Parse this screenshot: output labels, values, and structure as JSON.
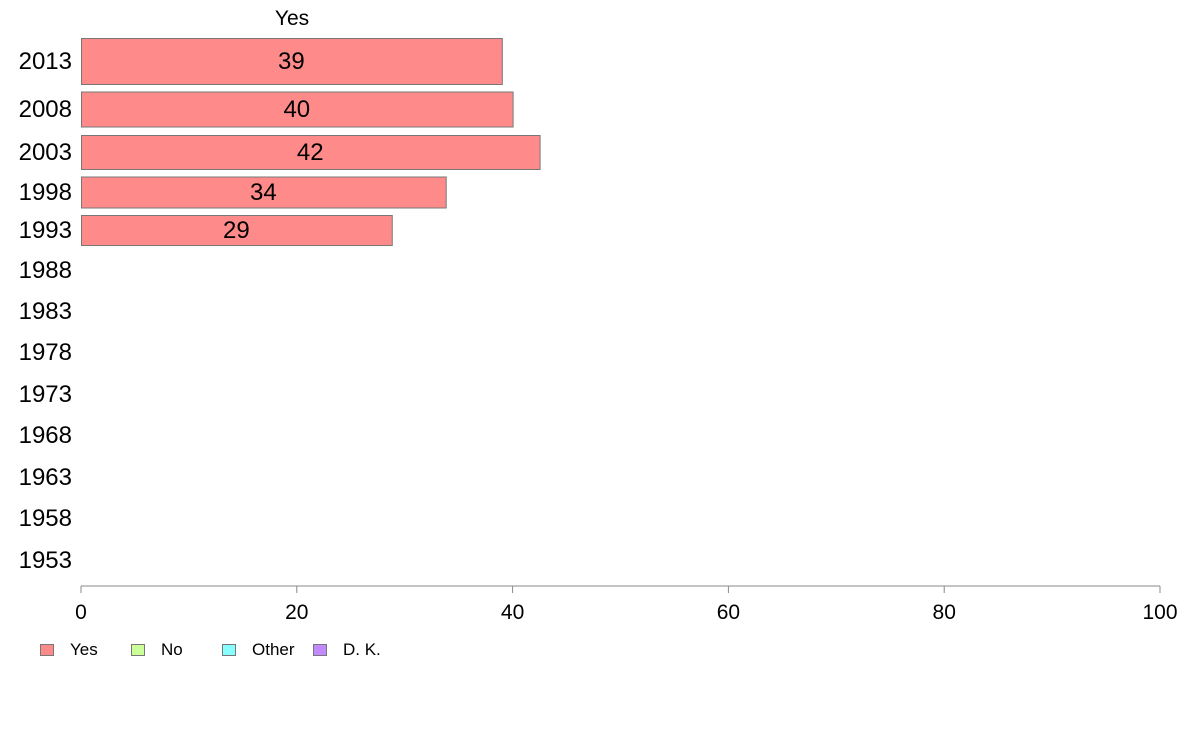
{
  "chart_data": {
    "type": "bar",
    "orientation": "horizontal",
    "title": "Yes",
    "categories": [
      "2013",
      "2008",
      "2003",
      "1998",
      "1993",
      "1988",
      "1983",
      "1978",
      "1973",
      "1968",
      "1963",
      "1958",
      "1953"
    ],
    "series": [
      {
        "name": "Yes",
        "color": "#ff8a8a",
        "values": [
          39,
          40,
          42.5,
          33.8,
          28.8,
          null,
          null,
          null,
          null,
          null,
          null,
          null,
          null
        ],
        "data_labels": [
          "39",
          "40",
          "42",
          "34",
          "29",
          "",
          "",
          "",
          "",
          "",
          "",
          "",
          ""
        ]
      }
    ],
    "xlim": [
      0,
      100
    ],
    "xticks": [
      "0",
      "20",
      "40",
      "60",
      "80",
      "100"
    ],
    "grid": false,
    "legend": {
      "placement": "bottom-left",
      "items": [
        {
          "label": "Yes",
          "color": "#ff8a8a"
        },
        {
          "label": "No",
          "color": "#ccff99"
        },
        {
          "label": "Other",
          "color": "#88ffff"
        },
        {
          "label": "D. K.",
          "color": "#c28aff"
        }
      ]
    }
  }
}
